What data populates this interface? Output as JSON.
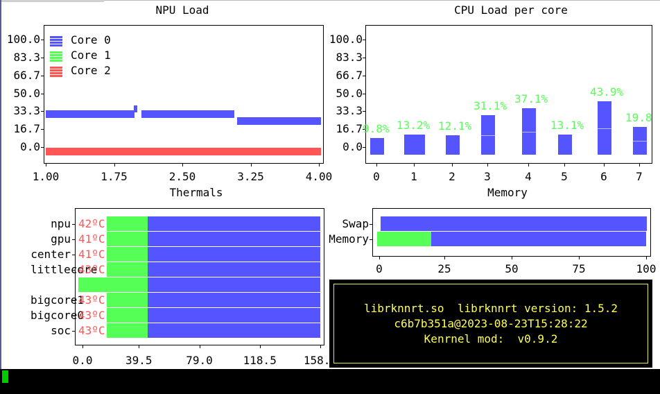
{
  "npu": {
    "title": "NPU Load",
    "y_ticks": [
      "100.0",
      "83.3",
      "66.7",
      "50.0",
      "33.3",
      "16.7",
      "0.0"
    ],
    "x_ticks": [
      "1.00",
      "1.75",
      "2.50",
      "3.25",
      "4.00"
    ],
    "legend": [
      "Core 0",
      "Core 1",
      "Core 2"
    ]
  },
  "cpu": {
    "title": "CPU Load per core",
    "y_ticks": [
      "100.0",
      "83.3",
      "66.7",
      "50.0",
      "33.3",
      "16.7",
      "0.0"
    ],
    "x_ticks": [
      "0",
      "1",
      "2",
      "3",
      "4",
      "5",
      "6",
      "7"
    ],
    "percent_labels": [
      "9.8%",
      "13.2%",
      "12.1%",
      "31.1%",
      "37.1%",
      "13.1%",
      "43.9%",
      "19.8"
    ]
  },
  "thermals": {
    "title": "Thermals",
    "sensors": [
      {
        "name": "npu",
        "temp": "42ºC"
      },
      {
        "name": "gpu",
        "temp": "41ºC"
      },
      {
        "name": "center",
        "temp": "41ºC"
      },
      {
        "name": "littlecore",
        "temp": "43ºC"
      },
      {
        "name": "",
        "temp": ""
      },
      {
        "name": "bigcore1",
        "temp": "43ºC"
      },
      {
        "name": "bigcore0",
        "temp": "43ºC"
      },
      {
        "name": "soc",
        "temp": "43ºC"
      }
    ],
    "x_ticks": [
      "0.0",
      "39.5",
      "79.0",
      "118.5",
      "158.0"
    ]
  },
  "memory": {
    "title": "Memory",
    "rows": [
      "Swap",
      "Memory"
    ],
    "x_ticks": [
      "0",
      "25",
      "50",
      "75",
      "100"
    ]
  },
  "info": {
    "line1": "librknnrt.so  librknnrt version: 1.5.2",
    "line2": "c6b7b351a@2023-08-23T15:28:22",
    "line3": "Kenrnel mod:  v0.9.2"
  },
  "colors": {
    "core0": "#5555ff",
    "core1": "#55ff55",
    "core2": "#ff5555",
    "info_text": "#ffff55"
  },
  "chart_data": [
    {
      "type": "line",
      "title": "NPU Load",
      "x_range": [
        1.0,
        4.0
      ],
      "ylim": [
        0,
        100
      ],
      "series": [
        {
          "name": "Core 0",
          "points": [
            [
              1.0,
              33.3
            ],
            [
              1.95,
              33.3
            ],
            [
              2.0,
              38
            ],
            [
              2.05,
              33.3
            ],
            [
              3.05,
              33.3
            ],
            [
              3.1,
              27
            ],
            [
              4.0,
              27
            ]
          ]
        },
        {
          "name": "Core 1",
          "points": [
            [
              1.0,
              0
            ],
            [
              4.0,
              0
            ]
          ]
        },
        {
          "name": "Core 2",
          "points": [
            [
              1.0,
              0
            ],
            [
              4.0,
              0
            ]
          ]
        }
      ]
    },
    {
      "type": "bar",
      "title": "CPU Load per core",
      "categories": [
        "0",
        "1",
        "2",
        "3",
        "4",
        "5",
        "6",
        "7"
      ],
      "values": [
        9.8,
        13.2,
        12.1,
        31.1,
        37.1,
        13.1,
        43.9,
        19.8
      ],
      "ylim": [
        0,
        100
      ]
    },
    {
      "type": "bar",
      "title": "Thermals",
      "orientation": "horizontal",
      "categories": [
        "npu",
        "gpu",
        "center",
        "littlecore",
        "",
        "bigcore1",
        "bigcore0",
        "soc"
      ],
      "values": [
        42,
        41,
        41,
        43,
        43,
        43,
        43,
        43
      ],
      "xlim": [
        0,
        158
      ]
    },
    {
      "type": "bar",
      "title": "Memory",
      "orientation": "horizontal",
      "categories": [
        "Swap",
        "Memory"
      ],
      "values": [
        1,
        19
      ],
      "xlim": [
        0,
        100
      ]
    }
  ]
}
